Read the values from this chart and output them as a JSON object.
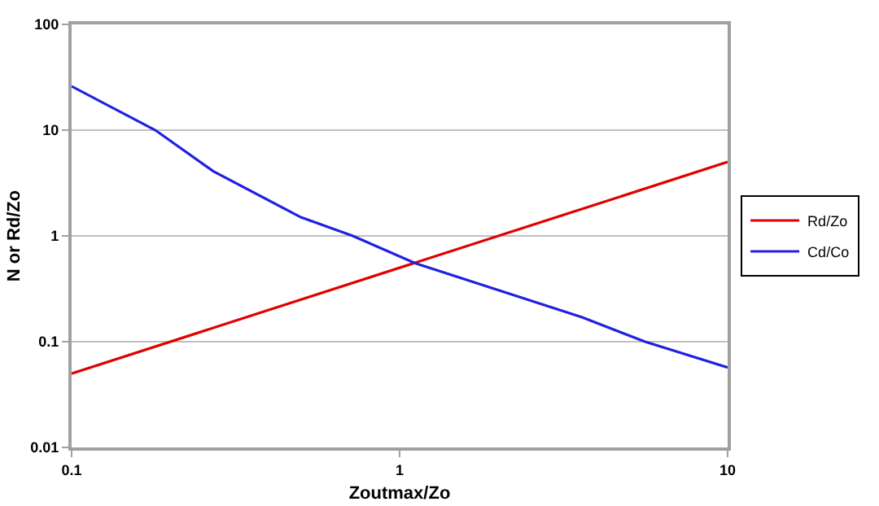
{
  "chart_data": {
    "type": "line",
    "xlabel": "Zoutmax/Zo",
    "ylabel": "N or Rd/Zo",
    "log": "xy",
    "grid": "y",
    "legend": "right",
    "marker": "none",
    "xlim": [
      0.1,
      10
    ],
    "xticks": [
      0.1,
      1,
      10
    ],
    "ylim": [
      0.01,
      100
    ],
    "yticks": [
      0.01,
      0.1,
      1,
      10,
      100
    ],
    "series": [
      {
        "name": "Rd/Zo",
        "color": "#e00000",
        "x": [
          0.1,
          10
        ],
        "values": [
          0.05,
          5
        ]
      },
      {
        "name": "Cd/Co",
        "color": "#2020e0",
        "x": [
          0.1,
          0.18,
          0.27,
          0.5,
          0.72,
          1.12,
          3.6,
          5.6,
          10
        ],
        "values": [
          26,
          10,
          4.1,
          1.5,
          1,
          0.55,
          0.17,
          0.1,
          0.057
        ]
      }
    ]
  }
}
